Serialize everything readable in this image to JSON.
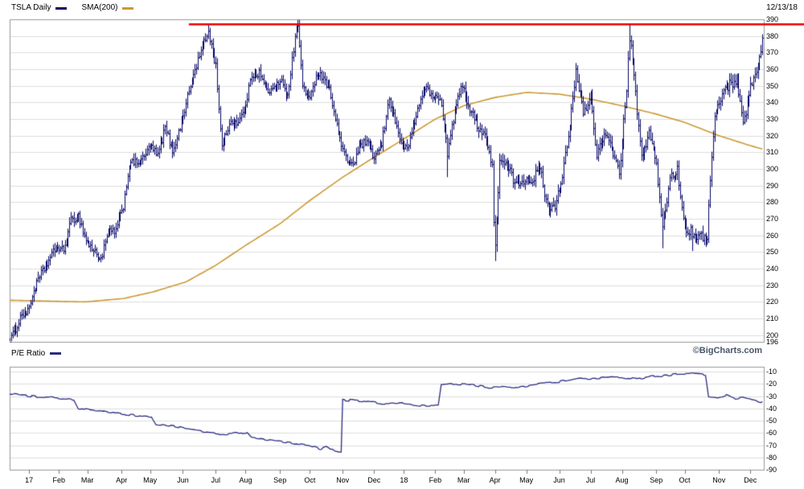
{
  "header": {
    "symbol_label": "TSLA Daily",
    "sma_label": "SMA(200)",
    "date": "12/13/18"
  },
  "pe_panel_label": "P/E Ratio",
  "footer": {
    "watermark": "©BigCharts.com"
  },
  "colors": {
    "price_bar": "#000066",
    "sma": "#cc9933",
    "resistance": "#ee0000",
    "pe_line": "#2b2b80",
    "grid": "#dcdcdc",
    "border": "#999999",
    "text": "#000000",
    "watermark": "#4a5568"
  },
  "chart_data": [
    {
      "type": "ohlc-bar",
      "title": "TSLA Daily price with 200-day SMA",
      "timeframe": "mid-Dec 2016 through 12/13/18, daily bars",
      "ylim": [
        196,
        390
      ],
      "y_ticks": [
        390,
        380,
        370,
        360,
        350,
        340,
        330,
        320,
        310,
        300,
        290,
        280,
        270,
        260,
        250,
        240,
        230,
        220,
        210,
        200,
        196
      ],
      "total_days": 505,
      "resistance_line": {
        "value": 387,
        "start_day": 120
      },
      "close_anchors": [
        [
          0,
          198
        ],
        [
          3,
          202
        ],
        [
          8,
          213
        ],
        [
          12,
          214
        ],
        [
          16,
          227
        ],
        [
          21,
          237
        ],
        [
          26,
          245
        ],
        [
          31,
          253
        ],
        [
          36,
          251
        ],
        [
          41,
          269
        ],
        [
          46,
          272
        ],
        [
          51,
          257
        ],
        [
          56,
          251
        ],
        [
          61,
          246
        ],
        [
          66,
          262
        ],
        [
          71,
          263
        ],
        [
          76,
          278
        ],
        [
          80,
          303
        ],
        [
          84,
          304
        ],
        [
          89,
          306
        ],
        [
          94,
          314
        ],
        [
          99,
          308
        ],
        [
          104,
          325
        ],
        [
          109,
          311
        ],
        [
          114,
          325
        ],
        [
          118,
          340
        ],
        [
          123,
          357
        ],
        [
          128,
          371
        ],
        [
          133,
          383
        ],
        [
          136,
          370
        ],
        [
          138,
          362
        ],
        [
          142,
          313
        ],
        [
          147,
          328
        ],
        [
          152,
          328
        ],
        [
          157,
          335
        ],
        [
          162,
          357
        ],
        [
          167,
          358
        ],
        [
          172,
          347
        ],
        [
          177,
          348
        ],
        [
          182,
          355
        ],
        [
          186,
          343
        ],
        [
          191,
          380
        ],
        [
          193,
          385
        ],
        [
          196,
          351
        ],
        [
          201,
          341
        ],
        [
          205,
          357
        ],
        [
          210,
          356
        ],
        [
          215,
          345
        ],
        [
          220,
          321
        ],
        [
          225,
          306
        ],
        [
          230,
          303
        ],
        [
          235,
          315
        ],
        [
          239,
          316
        ],
        [
          244,
          307
        ],
        [
          249,
          315
        ],
        [
          254,
          343
        ],
        [
          259,
          325
        ],
        [
          264,
          311
        ],
        [
          268,
          317
        ],
        [
          273,
          336
        ],
        [
          278,
          350
        ],
        [
          283,
          343
        ],
        [
          288,
          344
        ],
        [
          293,
          310
        ],
        [
          298,
          335
        ],
        [
          303,
          352
        ],
        [
          308,
          335
        ],
        [
          313,
          327
        ],
        [
          318,
          321
        ],
        [
          323,
          302
        ],
        [
          324,
          266
        ],
        [
          325,
          252
        ],
        [
          328,
          306
        ],
        [
          334,
          300
        ],
        [
          339,
          290
        ],
        [
          344,
          294
        ],
        [
          350,
          294
        ],
        [
          355,
          301
        ],
        [
          360,
          277
        ],
        [
          365,
          279
        ],
        [
          369,
          292
        ],
        [
          374,
          318
        ],
        [
          379,
          358
        ],
        [
          384,
          334
        ],
        [
          389,
          343
        ],
        [
          393,
          309
        ],
        [
          398,
          319
        ],
        [
          403,
          314
        ],
        [
          408,
          297
        ],
        [
          413,
          348
        ],
        [
          415,
          380
        ],
        [
          418,
          355
        ],
        [
          423,
          306
        ],
        [
          428,
          323
        ],
        [
          433,
          302
        ],
        [
          437,
          263
        ],
        [
          442,
          295
        ],
        [
          447,
          299
        ],
        [
          452,
          265
        ],
        [
          457,
          262
        ],
        [
          462,
          259
        ],
        [
          467,
          260
        ],
        [
          469,
          294
        ],
        [
          472,
          331
        ],
        [
          477,
          346
        ],
        [
          482,
          351
        ],
        [
          487,
          354
        ],
        [
          491,
          326
        ],
        [
          496,
          350
        ],
        [
          500,
          358
        ],
        [
          504,
          377
        ]
      ],
      "high_spikes": [
        [
          133,
          387.2
        ],
        [
          193,
          389.6
        ],
        [
          415,
          387.5
        ],
        [
          504,
          381
        ]
      ],
      "low_spikes": [
        [
          0,
          196.6
        ],
        [
          293,
          295
        ],
        [
          325,
          244.6
        ],
        [
          437,
          252.3
        ],
        [
          457,
          250.6
        ]
      ],
      "sma200_anchors": [
        [
          0,
          221
        ],
        [
          50,
          220
        ],
        [
          76,
          222
        ],
        [
          96,
          226
        ],
        [
          118,
          232
        ],
        [
          138,
          242
        ],
        [
          158,
          254
        ],
        [
          181,
          267
        ],
        [
          201,
          281
        ],
        [
          223,
          295
        ],
        [
          244,
          307
        ],
        [
          264,
          318
        ],
        [
          285,
          330
        ],
        [
          304,
          338
        ],
        [
          325,
          343
        ],
        [
          346,
          346
        ],
        [
          368,
          345
        ],
        [
          389,
          342
        ],
        [
          410,
          338
        ],
        [
          433,
          333
        ],
        [
          452,
          328
        ],
        [
          475,
          320
        ],
        [
          496,
          314
        ],
        [
          504,
          312
        ]
      ],
      "months": [
        [
          "17",
          13
        ],
        [
          "Feb",
          33
        ],
        [
          "Mar",
          52
        ],
        [
          "Apr",
          75
        ],
        [
          "May",
          94
        ],
        [
          "Jun",
          116
        ],
        [
          "Jul",
          138
        ],
        [
          "Aug",
          158
        ],
        [
          "Sep",
          181
        ],
        [
          "Oct",
          201
        ],
        [
          "Nov",
          223
        ],
        [
          "Dec",
          244
        ],
        [
          "18",
          264
        ],
        [
          "Feb",
          285
        ],
        [
          "Mar",
          304
        ],
        [
          "Apr",
          325
        ],
        [
          "May",
          346
        ],
        [
          "Jun",
          368
        ],
        [
          "Jul",
          389
        ],
        [
          "Aug",
          410
        ],
        [
          "Sep",
          433
        ],
        [
          "Oct",
          452
        ],
        [
          "Nov",
          475
        ],
        [
          "Dec",
          496
        ]
      ]
    },
    {
      "type": "line",
      "title": "P/E Ratio",
      "ylim": [
        -90,
        -10
      ],
      "y_ticks": [
        -10,
        -20,
        -30,
        -40,
        -50,
        -60,
        -70,
        -80,
        -90
      ],
      "anchors": [
        [
          0,
          -28
        ],
        [
          15,
          -30
        ],
        [
          30,
          -31
        ],
        [
          43,
          -33
        ],
        [
          46,
          -40
        ],
        [
          60,
          -42
        ],
        [
          76,
          -45
        ],
        [
          95,
          -47
        ],
        [
          98,
          -53
        ],
        [
          112,
          -55
        ],
        [
          125,
          -58
        ],
        [
          140,
          -61
        ],
        [
          159,
          -60
        ],
        [
          162,
          -64
        ],
        [
          175,
          -66
        ],
        [
          188,
          -68
        ],
        [
          200,
          -70
        ],
        [
          208,
          -73
        ],
        [
          213,
          -71
        ],
        [
          218,
          -75
        ],
        [
          222,
          -76
        ],
        [
          223,
          -33
        ],
        [
          235,
          -34
        ],
        [
          250,
          -36
        ],
        [
          264,
          -36
        ],
        [
          278,
          -38
        ],
        [
          287,
          -38
        ],
        [
          289,
          -21
        ],
        [
          300,
          -20
        ],
        [
          310,
          -21
        ],
        [
          320,
          -23
        ],
        [
          330,
          -22
        ],
        [
          340,
          -23
        ],
        [
          350,
          -21
        ],
        [
          360,
          -19
        ],
        [
          370,
          -18
        ],
        [
          380,
          -16
        ],
        [
          390,
          -16
        ],
        [
          400,
          -15
        ],
        [
          410,
          -15
        ],
        [
          420,
          -16
        ],
        [
          430,
          -14
        ],
        [
          440,
          -13
        ],
        [
          450,
          -12
        ],
        [
          460,
          -12
        ],
        [
          466,
          -13
        ],
        [
          468,
          -30
        ],
        [
          474,
          -31
        ],
        [
          480,
          -29
        ],
        [
          486,
          -32
        ],
        [
          492,
          -31
        ],
        [
          498,
          -33
        ],
        [
          504,
          -35
        ]
      ]
    }
  ]
}
